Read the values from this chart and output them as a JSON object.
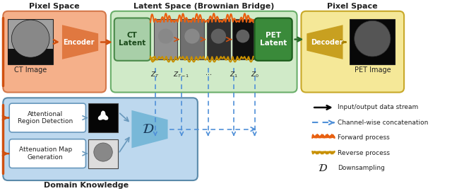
{
  "pixel_space_left_label": "Pixel Space",
  "latent_space_label": "Latent Space (Brownian Bridge)",
  "pixel_space_right_label": "Pixel Space",
  "domain_knowledge_label": "Domain Knowledge",
  "ct_image_label": "CT Image",
  "pet_image_label": "PET Image",
  "encoder_label": "Encoder",
  "decoder_label": "Decoder",
  "ct_latent_label": "CT\nLatent",
  "pet_latent_label": "PET\nLatent",
  "att_region_label": "Attentional\nRegion Detection",
  "att_map_label": "Attenuation Map\nGeneration",
  "legend_items": [
    "Input/output data stream",
    "Channel-wise concatenation",
    "Forward process",
    "Reverse process",
    "Downsampling"
  ],
  "colors": {
    "pixel_space_left_bg": "#F5B08A",
    "pixel_space_left_edge": "#D4784A",
    "latent_space_bg": "#D0EAC8",
    "latent_space_edge": "#6AAE6A",
    "pixel_space_right_bg": "#F5E898",
    "pixel_space_right_edge": "#C8A828",
    "domain_knowledge_bg": "#BDD8EE",
    "domain_knowledge_edge": "#5A8AAA",
    "ct_latent_box": "#A8CFA8",
    "ct_latent_edge": "#4A8A4A",
    "pet_latent_box": "#3A8A3A",
    "pet_latent_edge": "#1A5A1A",
    "encoder_color": "#E07840",
    "decoder_color": "#C8A020",
    "downsampling_color": "#78B8D8",
    "downsampling_edge": "#4A88AA",
    "arrow_orange": "#D05010",
    "arrow_green": "#2A6A2A",
    "arrow_gold": "#A88000",
    "forward_orange": "#E86010",
    "reverse_golden": "#C89000",
    "dashed_blue": "#5090D8",
    "inner_box_edge": "#6898BC",
    "inner_box_bg": "#FFFFFF"
  },
  "fig_width": 6.4,
  "fig_height": 2.7
}
